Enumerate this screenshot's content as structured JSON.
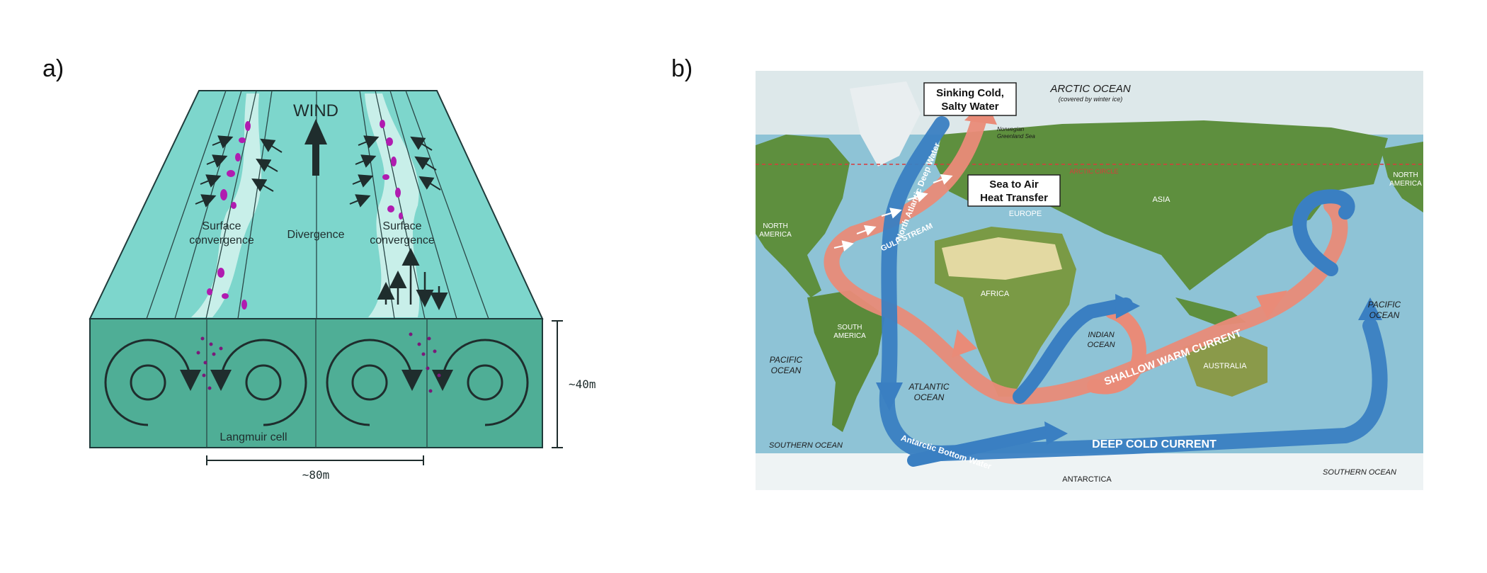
{
  "panel_a": {
    "label": "a)",
    "wind": "WIND",
    "surface_convergence_left": [
      "Surface",
      "convergence"
    ],
    "divergence": "Divergence",
    "surface_convergence_right": [
      "Surface",
      "convergence"
    ],
    "langmuir_cell": "Langmuir cell",
    "depth_scale": "~40m",
    "width_scale": "~80m"
  },
  "panel_b": {
    "label": "b)",
    "arctic_ocean": "ARCTIC OCEAN",
    "arctic_note": "(covered by winter ice)",
    "sinking_box": [
      "Sinking Cold,",
      "Salty Water"
    ],
    "heat_box": [
      "Sea to Air",
      "Heat Transfer"
    ],
    "norwegian_sea": [
      "Norwegian",
      "Greenland Sea"
    ],
    "arctic_circle": "ARCTIC CIRCLE",
    "north_atlantic_deep_water": "North Atlantic Deep Water",
    "gulf_stream": "GULF STREAM",
    "europe": "EUROPE",
    "asia": "ASIA",
    "north_america_left": [
      "NORTH",
      "AMERICA"
    ],
    "north_america_right": [
      "NORTH",
      "AMERICA"
    ],
    "africa": "AFRICA",
    "south_america": [
      "SOUTH",
      "AMERICA"
    ],
    "indian_ocean": [
      "INDIAN",
      "OCEAN"
    ],
    "pacific_ocean_right": [
      "PACIFIC",
      "OCEAN"
    ],
    "pacific_ocean_left": [
      "PACIFIC",
      "OCEAN"
    ],
    "atlantic_ocean": [
      "ATLANTIC",
      "OCEAN"
    ],
    "australia": "AUSTRALIA",
    "shallow_warm_current": "SHALLOW WARM CURRENT",
    "deep_cold_current": "DEEP COLD CURRENT",
    "antarctic_bottom_water": "Antarctic Bottom Water",
    "southern_ocean_left": "SOUTHERN OCEAN",
    "southern_ocean_right": "SOUTHERN OCEAN",
    "antarctica": "ANTARCTICA"
  },
  "colors": {
    "teal_surface": "#7dd6cc",
    "teal_box": "#4fae96",
    "foam": "#c8efe9",
    "debris": "#b01cb0",
    "ocean": "#8ec3d6",
    "land": "#5e8f3e",
    "warm": "#e98b78",
    "cold": "#3a7fc2"
  }
}
